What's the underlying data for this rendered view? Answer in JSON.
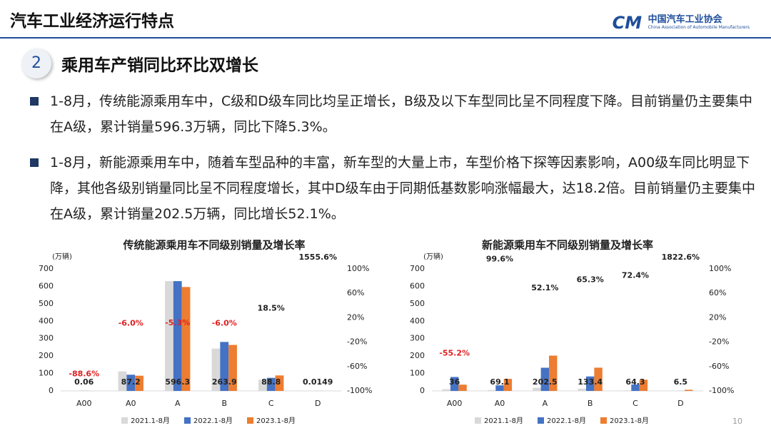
{
  "header": {
    "title": "汽车工业经济运行特点",
    "logo_name": "中国汽车工业协会",
    "logo_subtitle": "China Association of Automobile Manufacturers"
  },
  "section": {
    "number": "2",
    "title": "乘用车产销同比环比双增长"
  },
  "bullets": [
    "1-8月，传统能源乘用车中，C级和D级车同比均呈正增长，B级及以下车型同比呈不同程度下降。目前销量仍主要集中在A级，累计销量596.3万辆，同比下降5.3%。",
    "1-8月，新能源乘用车中，随着车型品种的丰富，新车型的大量上市，车型价格下探等因素影响，A00级车同比明显下降，其他各级别销量同比呈不同程度增长，其中D级车由于同期低基数影响涨幅最大，达18.2倍。目前销量仍主要集中在A级，累计销量202.5万辆，同比增长52.1%。"
  ],
  "chart_data": [
    {
      "type": "bar",
      "title": "传统能源乘用车不同级别销量及增长率",
      "y_label": "(万辆)",
      "categories": [
        "A00",
        "A0",
        "A",
        "B",
        "C",
        "D"
      ],
      "series": [
        {
          "name": "2021.1-8月",
          "color": "#d9d9d9",
          "values": [
            0.5,
            112,
            630,
            243,
            64,
            0.1
          ]
        },
        {
          "name": "2022.1-8月",
          "color": "#4472c4",
          "values": [
            0.5,
            93,
            630,
            281,
            75,
            0.1
          ]
        },
        {
          "name": "2023.1-8月",
          "color": "#ed7d31",
          "values": [
            0.06,
            87.2,
            596.3,
            263.9,
            88.8,
            0.0149
          ],
          "data_labels": true
        }
      ],
      "growth_rate": {
        "axis": "y2",
        "values": [
          -88.6,
          -6.0,
          -5.3,
          -6.0,
          18.5,
          1555.6
        ],
        "value_labels": [
          "-88.6%",
          "-6.0%",
          "-5.3%",
          "-6.0%",
          "18.5%",
          "1555.6%"
        ],
        "negative_color": "#e02020",
        "color": "#222222"
      },
      "ylim": [
        0,
        700
      ],
      "yticks": [
        0,
        100,
        200,
        300,
        400,
        500,
        600,
        700
      ],
      "y2lim": [
        -100,
        100
      ],
      "y2ticks": [
        {
          "value": -100,
          "label": "-100%"
        },
        {
          "value": -60,
          "label": "-60%"
        },
        {
          "value": -20,
          "label": "-20%"
        },
        {
          "value": 20,
          "label": "20%"
        },
        {
          "value": 60,
          "label": "60%"
        },
        {
          "value": 100,
          "label": "100%"
        }
      ],
      "legend": "bottom"
    },
    {
      "type": "bar",
      "title": "新能源乘用车不同级别销量及增长率",
      "y_label": "(万辆)",
      "categories": [
        "A00",
        "A0",
        "A",
        "B",
        "C",
        "D"
      ],
      "series": [
        {
          "name": "2021.1-8月",
          "color": "#d9d9d9",
          "values": [
            10,
            5,
            18,
            13,
            3,
            0
          ]
        },
        {
          "name": "2022.1-8月",
          "color": "#4472c4",
          "values": [
            80,
            32,
            133,
            83,
            37,
            0.3
          ]
        },
        {
          "name": "2023.1-8月",
          "color": "#ed7d31",
          "values": [
            36,
            69.1,
            202.5,
            133.4,
            64.3,
            6.5
          ],
          "data_labels": true
        }
      ],
      "growth_rate": {
        "axis": "y2",
        "values": [
          -55.2,
          99.6,
          52.1,
          65.3,
          72.4,
          1822.6
        ],
        "value_labels": [
          "-55.2%",
          "99.6%",
          "52.1%",
          "65.3%",
          "72.4%",
          "1822.6%"
        ],
        "negative_color": "#e02020",
        "color": "#222222"
      },
      "ylim": [
        0,
        700
      ],
      "yticks": [
        0,
        100,
        200,
        300,
        400,
        500,
        600,
        700
      ],
      "y2lim": [
        -100,
        100
      ],
      "y2ticks": [
        {
          "value": -100,
          "label": "-100%"
        },
        {
          "value": -60,
          "label": "-60%"
        },
        {
          "value": -20,
          "label": "-20%"
        },
        {
          "value": 20,
          "label": "20%"
        },
        {
          "value": 60,
          "label": "60%"
        },
        {
          "value": 100,
          "label": "100%"
        }
      ],
      "legend": "bottom"
    }
  ],
  "page_number": "10"
}
